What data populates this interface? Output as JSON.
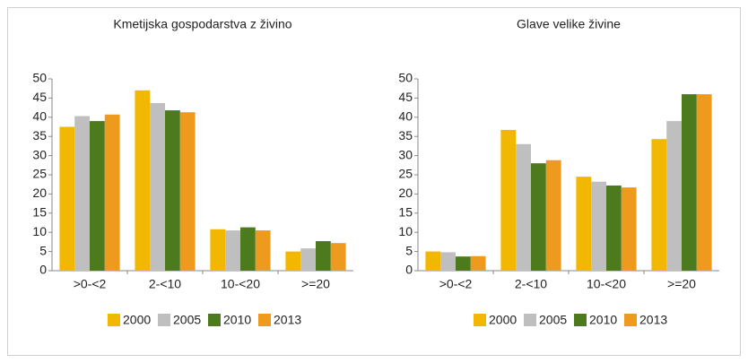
{
  "chart_data": [
    {
      "type": "bar",
      "title": "Kmetijska gospodarstva z živino",
      "categories": [
        ">0-<2",
        "2-<10",
        "10-<20",
        ">=20"
      ],
      "series": [
        {
          "name": "2000",
          "color": "#f2b700",
          "values": [
            37.5,
            47,
            10.8,
            5
          ]
        },
        {
          "name": "2005",
          "color": "#bfbfbf",
          "values": [
            40.3,
            43.7,
            10.5,
            5.8
          ]
        },
        {
          "name": "2010",
          "color": "#4e7a1e",
          "values": [
            39,
            41.8,
            11.3,
            7.7
          ]
        },
        {
          "name": "2013",
          "color": "#ee9a1e",
          "values": [
            40.7,
            41.3,
            10.5,
            7.2
          ]
        }
      ],
      "ylim": [
        0,
        50
      ],
      "yticks": [
        0,
        5,
        10,
        15,
        20,
        25,
        30,
        35,
        40,
        45,
        50
      ],
      "grid": false
    },
    {
      "type": "bar",
      "title": "Glave velike živine",
      "categories": [
        ">0-<2",
        "2-<10",
        "10-<20",
        ">=20"
      ],
      "series": [
        {
          "name": "2000",
          "color": "#f2b700",
          "values": [
            5,
            36.7,
            24.5,
            34.3
          ]
        },
        {
          "name": "2005",
          "color": "#bfbfbf",
          "values": [
            4.8,
            33,
            23.2,
            39
          ]
        },
        {
          "name": "2010",
          "color": "#4e7a1e",
          "values": [
            3.7,
            28,
            22.2,
            46
          ]
        },
        {
          "name": "2013",
          "color": "#ee9a1e",
          "values": [
            3.8,
            28.8,
            21.7,
            46
          ]
        }
      ],
      "ylim": [
        0,
        50
      ],
      "yticks": [
        0,
        5,
        10,
        15,
        20,
        25,
        30,
        35,
        40,
        45,
        50
      ],
      "grid": false
    }
  ]
}
